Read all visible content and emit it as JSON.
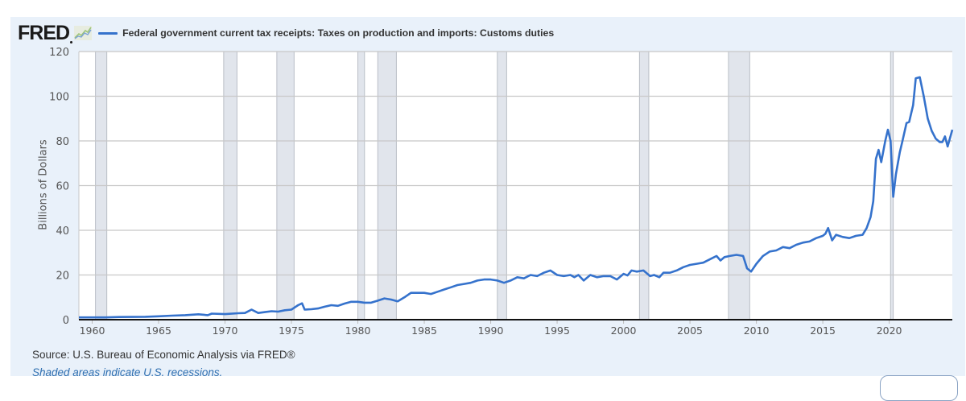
{
  "header": {
    "logo_text": "FRED",
    "logo_icon": "mini-line-graph-icon",
    "legend_label": "Federal government current tax receipts: Taxes on production and imports: Customs duties",
    "legend_color": "#3572cc"
  },
  "footer": {
    "source": "Source: U.S. Bureau of Economic Analysis via FRED®",
    "note": "Shaded areas indicate U.S. recessions."
  },
  "colors": {
    "panel_bg": "#e9f1fa",
    "plot_bg": "#ffffff",
    "line": "#3572cc",
    "recession": "#e1e5ec",
    "recession_edge": "#b9bec6",
    "grid": "#c8c8c8"
  },
  "chart_data": {
    "type": "line",
    "title": "Federal government current tax receipts: Taxes on production and imports: Customs duties",
    "xlabel": "",
    "ylabel": "Billions of Dollars",
    "ylim": [
      0,
      120
    ],
    "xlim": [
      1959.0,
      2024.75
    ],
    "yticks": [
      0,
      20,
      40,
      60,
      80,
      100,
      120
    ],
    "xticks": [
      1960,
      1965,
      1970,
      1975,
      1980,
      1985,
      1990,
      1995,
      2000,
      2005,
      2010,
      2015,
      2020
    ],
    "grid": true,
    "legend_position": "top-left",
    "recessions": [
      [
        1960.25,
        1961.1
      ],
      [
        1969.9,
        1970.9
      ],
      [
        1973.9,
        1975.2
      ],
      [
        1980.0,
        1980.5
      ],
      [
        1981.5,
        1982.9
      ],
      [
        1990.5,
        1991.2
      ],
      [
        2001.2,
        2001.9
      ],
      [
        2007.9,
        2009.5
      ],
      [
        2020.1,
        2020.3
      ]
    ],
    "series": [
      {
        "name": "Customs duties",
        "x": [
          1959.0,
          1961.0,
          1962.0,
          1964.0,
          1965.0,
          1966.0,
          1967.0,
          1968.0,
          1968.7,
          1969.0,
          1970.0,
          1971.0,
          1971.5,
          1972.0,
          1972.5,
          1973.0,
          1973.5,
          1974.0,
          1974.5,
          1975.0,
          1975.5,
          1975.8,
          1976.0,
          1976.5,
          1977.0,
          1977.5,
          1978.0,
          1978.5,
          1979.0,
          1979.5,
          1980.0,
          1980.5,
          1981.0,
          1981.5,
          1982.0,
          1982.5,
          1983.0,
          1983.5,
          1984.0,
          1985.0,
          1985.5,
          1986.0,
          1986.5,
          1987.0,
          1987.5,
          1988.0,
          1988.5,
          1989.0,
          1989.5,
          1990.0,
          1990.5,
          1991.0,
          1991.5,
          1992.0,
          1992.5,
          1993.0,
          1993.5,
          1994.0,
          1994.5,
          1995.0,
          1995.5,
          1996.0,
          1996.3,
          1996.6,
          1997.0,
          1997.5,
          1998.0,
          1998.5,
          1999.0,
          1999.5,
          2000.0,
          2000.3,
          2000.6,
          2001.0,
          2001.5,
          2002.0,
          2002.3,
          2002.7,
          2003.0,
          2003.5,
          2004.0,
          2004.5,
          2005.0,
          2005.5,
          2006.0,
          2006.5,
          2007.0,
          2007.3,
          2007.6,
          2008.0,
          2008.5,
          2009.0,
          2009.3,
          2009.6,
          2010.0,
          2010.5,
          2011.0,
          2011.5,
          2012.0,
          2012.5,
          2013.0,
          2013.5,
          2014.0,
          2014.5,
          2015.0,
          2015.2,
          2015.4,
          2015.7,
          2016.0,
          2016.5,
          2017.0,
          2017.5,
          2018.0,
          2018.3,
          2018.6,
          2018.8,
          2019.0,
          2019.2,
          2019.4,
          2019.7,
          2019.9,
          2020.1,
          2020.3,
          2020.5,
          2020.8,
          2021.0,
          2021.3,
          2021.5,
          2021.8,
          2022.0,
          2022.3,
          2022.6,
          2022.9,
          2023.2,
          2023.5,
          2023.8,
          2024.0,
          2024.2,
          2024.4,
          2024.75
        ],
        "values": [
          1.0,
          1.0,
          1.2,
          1.3,
          1.5,
          1.8,
          2.0,
          2.4,
          2.0,
          2.7,
          2.5,
          2.9,
          3.0,
          4.5,
          3.0,
          3.4,
          3.8,
          3.6,
          4.2,
          4.5,
          6.5,
          7.3,
          4.5,
          4.7,
          5.0,
          5.8,
          6.5,
          6.2,
          7.2,
          8.0,
          8.0,
          7.6,
          7.6,
          8.5,
          9.5,
          9.0,
          8.2,
          10.0,
          12.0,
          12.0,
          11.5,
          12.5,
          13.5,
          14.5,
          15.5,
          16.0,
          16.5,
          17.5,
          18.0,
          18.0,
          17.5,
          16.5,
          17.5,
          19.0,
          18.5,
          20.0,
          19.5,
          21.0,
          22.0,
          20.0,
          19.5,
          20.0,
          19.0,
          20.0,
          17.5,
          20.0,
          19.0,
          19.5,
          19.5,
          18.0,
          20.5,
          19.8,
          22.0,
          21.5,
          22.0,
          19.5,
          20.0,
          19.0,
          21.0,
          21.0,
          22.0,
          23.5,
          24.5,
          25.0,
          25.5,
          27.0,
          28.5,
          26.5,
          28.0,
          28.5,
          29.0,
          28.5,
          23.0,
          21.5,
          25.0,
          28.5,
          30.5,
          31.0,
          32.5,
          32.0,
          33.5,
          34.5,
          35.0,
          36.5,
          37.5,
          38.5,
          41.0,
          35.5,
          38.0,
          37.0,
          36.5,
          37.5,
          38.0,
          41.0,
          46.0,
          53.0,
          72.0,
          76.0,
          70.5,
          80.0,
          85.0,
          80.0,
          55.0,
          65.0,
          75.0,
          80.0,
          88.0,
          88.5,
          96.0,
          108.0,
          108.5,
          100.0,
          90.0,
          84.5,
          81.0,
          79.5,
          79.5,
          82.0,
          77.5,
          85.0
        ]
      }
    ]
  }
}
